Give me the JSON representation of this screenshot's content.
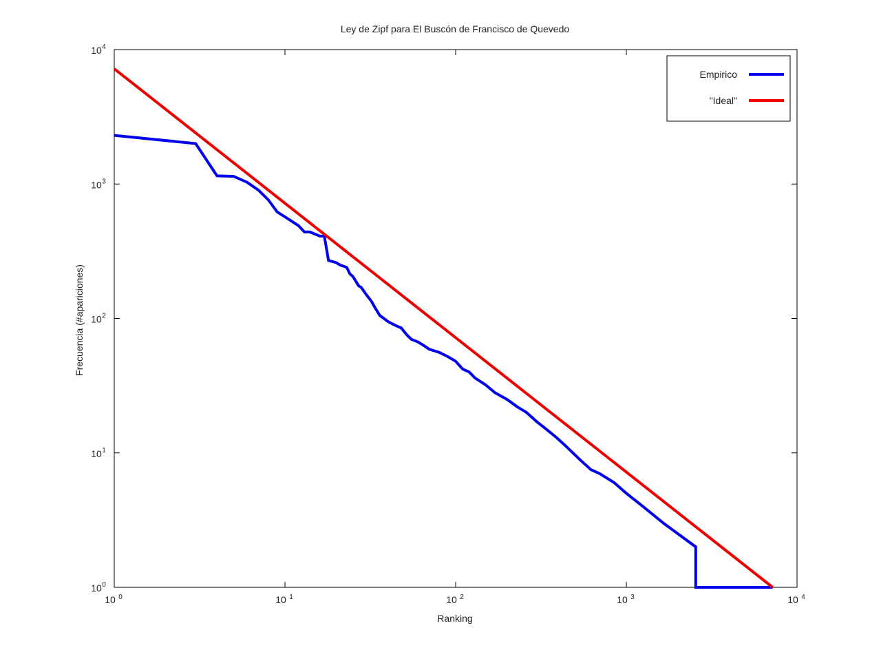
{
  "chart_data": {
    "type": "line",
    "title": "Ley de Zipf para El Buscón de Francisco de Quevedo",
    "xlabel": "Ranking",
    "ylabel": "Frecuencia (#apariciones)",
    "x_scale": "log",
    "y_scale": "log",
    "xlim": [
      1,
      10000
    ],
    "ylim": [
      1,
      10000
    ],
    "grid": false,
    "legend_position": "top-right",
    "x_ticks": [
      {
        "base": "10",
        "exp": "0",
        "value": 1
      },
      {
        "base": "10",
        "exp": "1",
        "value": 10
      },
      {
        "base": "10",
        "exp": "2",
        "value": 100
      },
      {
        "base": "10",
        "exp": "3",
        "value": 1000
      },
      {
        "base": "10",
        "exp": "4",
        "value": 10000
      }
    ],
    "y_ticks": [
      {
        "base": "10",
        "exp": "0",
        "value": 1
      },
      {
        "base": "10",
        "exp": "1",
        "value": 10
      },
      {
        "base": "10",
        "exp": "2",
        "value": 100
      },
      {
        "base": "10",
        "exp": "3",
        "value": 1000
      },
      {
        "base": "10",
        "exp": "4",
        "value": 10000
      }
    ],
    "series": [
      {
        "name": "Empirico",
        "color": "#0000ee",
        "x": [
          1,
          3,
          4,
          5,
          6,
          7,
          8,
          9,
          10,
          12,
          13,
          14,
          16,
          17,
          18,
          20,
          21,
          23,
          24,
          25,
          27,
          28,
          30,
          32,
          34,
          36,
          38,
          40,
          42,
          45,
          48,
          52,
          55,
          60,
          65,
          70,
          80,
          90,
          100,
          110,
          120,
          130,
          150,
          170,
          200,
          230,
          260,
          300,
          340,
          390,
          450,
          530,
          620,
          700,
          850,
          1000,
          1250,
          1650,
          2550,
          2550,
          7200
        ],
        "y": [
          2300,
          2000,
          1150,
          1140,
          1030,
          900,
          760,
          620,
          570,
          490,
          440,
          440,
          410,
          410,
          270,
          260,
          250,
          240,
          215,
          205,
          175,
          170,
          150,
          135,
          118,
          105,
          100,
          95,
          92,
          88,
          85,
          75,
          70,
          67,
          63,
          59,
          56,
          52,
          48,
          42,
          40,
          36,
          32,
          28,
          25,
          22,
          20,
          17,
          15,
          13,
          11,
          9,
          7.5,
          7,
          6,
          5,
          4,
          3,
          2,
          1,
          1
        ]
      },
      {
        "name": "\"Ideal\"",
        "color": "#ee0000",
        "x": [
          1,
          7200
        ],
        "y": [
          7200,
          1
        ]
      }
    ]
  }
}
